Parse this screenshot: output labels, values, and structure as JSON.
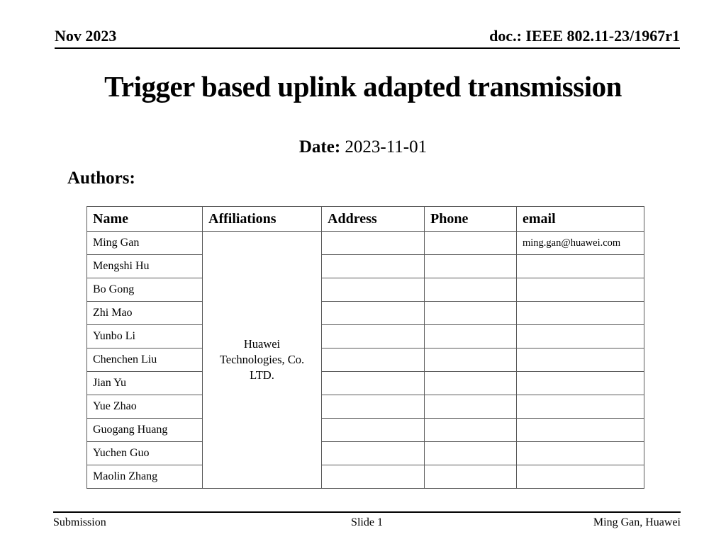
{
  "header": {
    "left": "Nov 2023",
    "right": "doc.: IEEE 802.11-23/1967r1"
  },
  "title": "Trigger based uplink adapted transmission",
  "date": {
    "label": "Date:",
    "value": " 2023-11-01"
  },
  "authors_label": "Authors:",
  "table": {
    "columns": [
      "Name",
      "Affiliations",
      "Address",
      "Phone",
      "email"
    ],
    "affiliation_lines": [
      "Huawei",
      "Technologies, Co.",
      "LTD."
    ],
    "rows": [
      {
        "name": "Ming Gan",
        "address": "",
        "phone": "",
        "email": "ming.gan@huawei.com"
      },
      {
        "name": "Mengshi Hu",
        "address": "",
        "phone": "",
        "email": ""
      },
      {
        "name": "Bo Gong",
        "address": "",
        "phone": "",
        "email": ""
      },
      {
        "name": "Zhi Mao",
        "address": "",
        "phone": "",
        "email": ""
      },
      {
        "name": "Yunbo Li",
        "address": "",
        "phone": "",
        "email": ""
      },
      {
        "name": "Chenchen Liu",
        "address": "",
        "phone": "",
        "email": ""
      },
      {
        "name": "Jian Yu",
        "address": "",
        "phone": "",
        "email": ""
      },
      {
        "name": "Yue Zhao",
        "address": "",
        "phone": "",
        "email": ""
      },
      {
        "name": "Guogang Huang",
        "address": "",
        "phone": "",
        "email": ""
      },
      {
        "name": "Yuchen Guo",
        "address": "",
        "phone": "",
        "email": ""
      },
      {
        "name": "Maolin Zhang",
        "address": "",
        "phone": "",
        "email": ""
      }
    ]
  },
  "footer": {
    "left": "Submission",
    "center": "Slide 1",
    "right": "Ming Gan, Huawei"
  },
  "colors": {
    "text": "#000000",
    "rule": "#000000",
    "table_border": "#595959",
    "background": "#ffffff"
  }
}
